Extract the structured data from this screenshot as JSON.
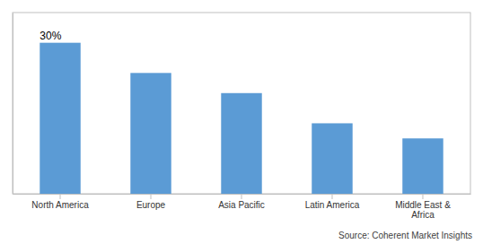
{
  "chart_data": {
    "type": "bar",
    "categories": [
      "North America",
      "Europe",
      "Asia Pacific",
      "Latin America",
      "Middle East &\nAfrica"
    ],
    "values": [
      30,
      24,
      20,
      14,
      11
    ],
    "color": "#5B9BD5",
    "ylim": [
      0,
      36
    ],
    "yticks": [],
    "grid": false,
    "tick_labels": "x",
    "annotations": [
      {
        "text": "30%",
        "x": "North America",
        "y": 30
      }
    ],
    "source": "Source: Coherent Market Insights"
  }
}
